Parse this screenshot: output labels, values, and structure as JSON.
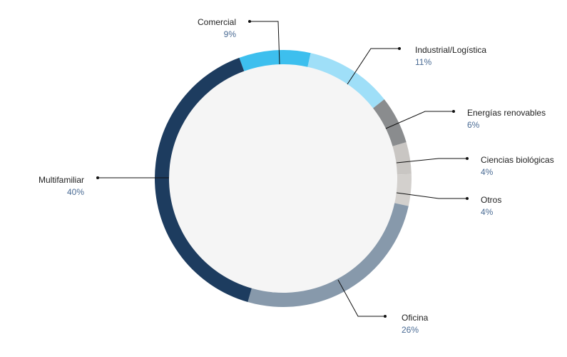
{
  "chart_data": {
    "type": "donut",
    "categories": [
      "Comercial",
      "Industrial/Logística",
      "Energías renovables",
      "Ciencias biológicas",
      "Otros",
      "Oficina",
      "Multifamiliar"
    ],
    "values": [
      9,
      11,
      6,
      4,
      4,
      26,
      40
    ],
    "value_labels": [
      "9%",
      "11%",
      "6%",
      "4%",
      "4%",
      "26%",
      "40%"
    ],
    "colors": [
      "#3dbfee",
      "#9fdff8",
      "#8a8c8e",
      "#c9c6c3",
      "#d3d0cd",
      "#8799ab",
      "#1d3c5f"
    ]
  }
}
